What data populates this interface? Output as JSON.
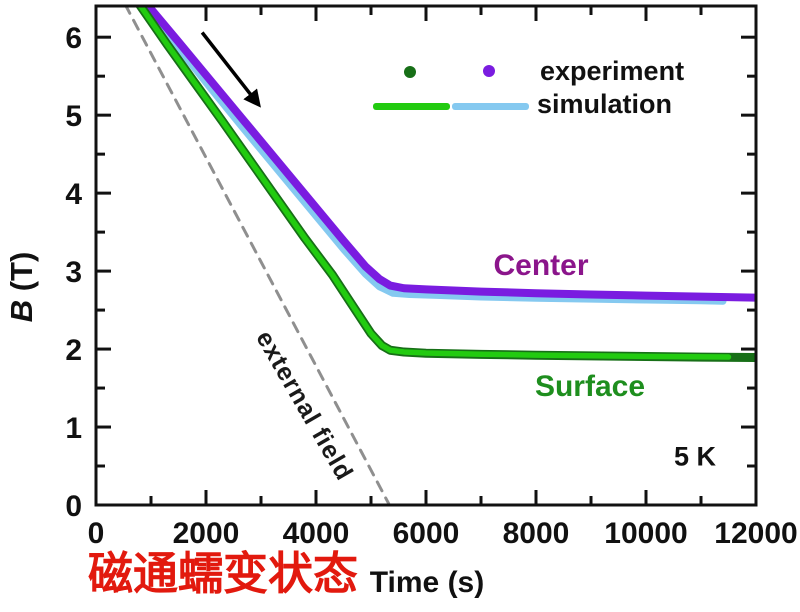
{
  "axis": {
    "x_title": "Time (s)",
    "y_title_italic": "B",
    "y_title_rest": " (T)"
  },
  "legend": {
    "experiment_label": "experiment",
    "simulation_label": "simulation"
  },
  "labels": {
    "center": "Center",
    "surface": "Surface",
    "temperature": "5 K",
    "external_field": "external field",
    "annotation_cn": "磁通蠕变状态"
  },
  "colors": {
    "bright_green": "#22cb10",
    "dark_green": "#176f17",
    "violet": "#7a1ce0",
    "sky_blue": "#85c9f0",
    "dashed_gray": "#8f8f8f",
    "center_text": "#8b158b",
    "surface_text": "#1e8e1e",
    "annotation_red": "#e2190e",
    "axis_black": "#111111"
  },
  "chart_data": {
    "type": "line",
    "xlabel": "Time (s)",
    "ylabel": "B (T)",
    "xlim": [
      0,
      12000
    ],
    "ylim": [
      0,
      6.4
    ],
    "x_major_ticks": [
      0,
      2000,
      4000,
      6000,
      8000,
      10000,
      12000
    ],
    "x_minor_step": 1000,
    "y_major_ticks": [
      0,
      1,
      2,
      3,
      4,
      5,
      6
    ],
    "y_minor_step": 0.5,
    "grid": false,
    "legend_position": "upper right inside",
    "series": [
      {
        "name": "external field",
        "kind": "ramp reference",
        "color_key": "dashed_gray",
        "width": 3,
        "dash": "10 8",
        "points": [
          [
            530,
            6.42
          ],
          [
            5320,
            0.02
          ]
        ]
      },
      {
        "name": "Center simulation",
        "kind": "simulation",
        "color_key": "sky_blue",
        "width": 7,
        "dash": null,
        "points": [
          [
            950,
            6.42
          ],
          [
            1500,
            5.86
          ],
          [
            2100,
            5.33
          ],
          [
            2700,
            4.81
          ],
          [
            3300,
            4.3
          ],
          [
            3900,
            3.79
          ],
          [
            4500,
            3.28
          ],
          [
            4900,
            2.96
          ],
          [
            5150,
            2.8
          ],
          [
            5400,
            2.715
          ],
          [
            5700,
            2.7
          ],
          [
            6200,
            2.688
          ],
          [
            7000,
            2.668
          ],
          [
            8000,
            2.652
          ],
          [
            9000,
            2.64
          ],
          [
            10000,
            2.629
          ],
          [
            11000,
            2.619
          ],
          [
            11400,
            2.614
          ]
        ]
      },
      {
        "name": "Center experiment",
        "kind": "experiment",
        "color_key": "violet",
        "width": 8,
        "dash": null,
        "points": [
          [
            930,
            6.42
          ],
          [
            1500,
            5.94
          ],
          [
            2100,
            5.43
          ],
          [
            2700,
            4.92
          ],
          [
            3300,
            4.41
          ],
          [
            3900,
            3.9
          ],
          [
            4500,
            3.39
          ],
          [
            4900,
            3.06
          ],
          [
            5150,
            2.9
          ],
          [
            5350,
            2.815
          ],
          [
            5600,
            2.78
          ],
          [
            6000,
            2.765
          ],
          [
            7000,
            2.737
          ],
          [
            8000,
            2.716
          ],
          [
            9000,
            2.7
          ],
          [
            10000,
            2.686
          ],
          [
            11000,
            2.672
          ],
          [
            12000,
            2.66
          ]
        ]
      },
      {
        "name": "Surface experiment",
        "kind": "experiment",
        "color_key": "dark_green",
        "width": 9,
        "dash": null,
        "points": [
          [
            790,
            6.42
          ],
          [
            1300,
            5.9
          ],
          [
            1800,
            5.41
          ],
          [
            2300,
            4.92
          ],
          [
            2800,
            4.42
          ],
          [
            3300,
            3.92
          ],
          [
            3800,
            3.42
          ],
          [
            4300,
            2.95
          ],
          [
            4700,
            2.52
          ],
          [
            5000,
            2.2
          ],
          [
            5200,
            2.045
          ],
          [
            5350,
            1.985
          ],
          [
            5600,
            1.962
          ],
          [
            6000,
            1.947
          ],
          [
            7000,
            1.932
          ],
          [
            8000,
            1.921
          ],
          [
            9000,
            1.912
          ],
          [
            10000,
            1.904
          ],
          [
            11000,
            1.897
          ],
          [
            12000,
            1.891
          ]
        ]
      },
      {
        "name": "Surface simulation",
        "kind": "simulation",
        "color_key": "bright_green",
        "width": 5.5,
        "dash": null,
        "points": [
          [
            790,
            6.42
          ],
          [
            1300,
            5.9
          ],
          [
            1800,
            5.41
          ],
          [
            2300,
            4.92
          ],
          [
            2800,
            4.42
          ],
          [
            3300,
            3.92
          ],
          [
            3800,
            3.42
          ],
          [
            4300,
            2.95
          ],
          [
            4700,
            2.52
          ],
          [
            5000,
            2.2
          ],
          [
            5200,
            2.045
          ],
          [
            5350,
            1.985
          ],
          [
            5600,
            1.963
          ],
          [
            6000,
            1.949
          ],
          [
            7000,
            1.934
          ],
          [
            8000,
            1.923
          ],
          [
            9000,
            1.914
          ],
          [
            10000,
            1.906
          ],
          [
            10800,
            1.901
          ],
          [
            11500,
            1.898
          ]
        ]
      }
    ],
    "annotations": {
      "ramp_arrow": {
        "from": [
          1930,
          6.06
        ],
        "to": [
          2950,
          5.14
        ]
      }
    }
  }
}
